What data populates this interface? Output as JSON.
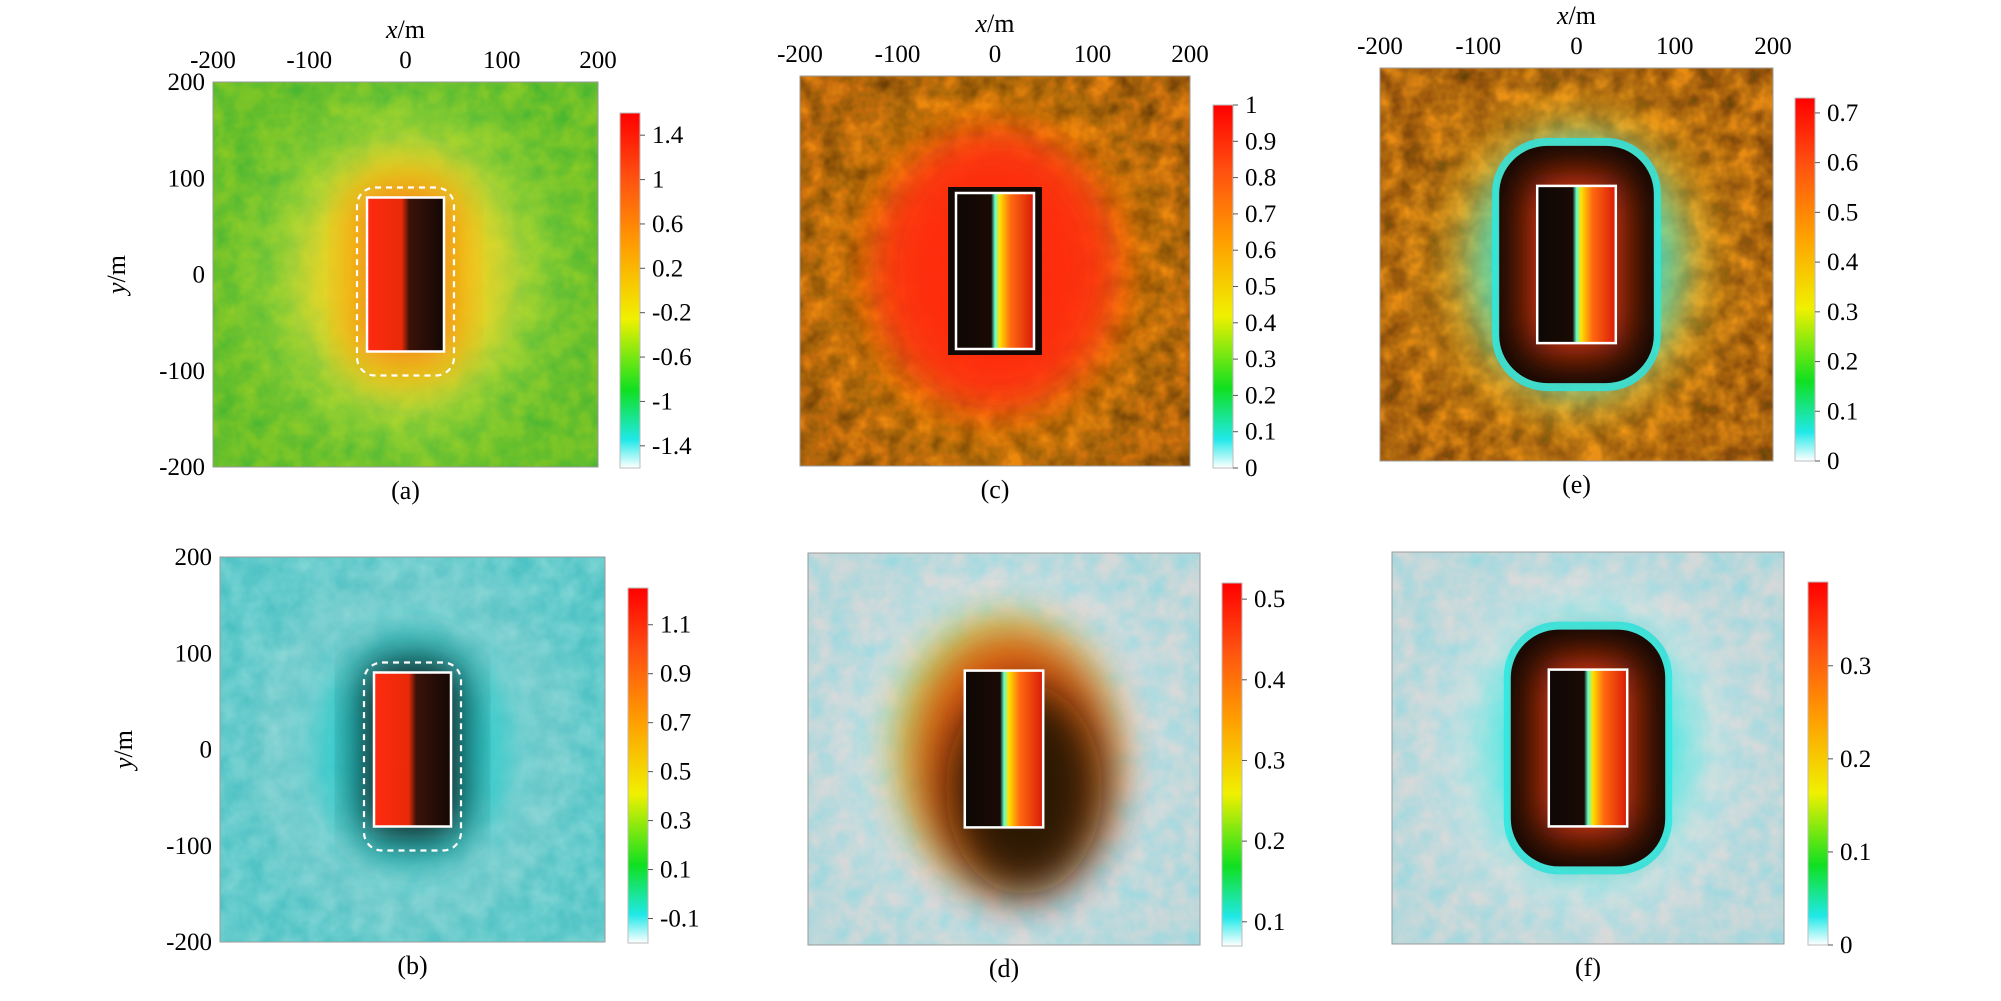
{
  "figure": {
    "axis_unit_x": "x/m",
    "axis_unit_y": "y/m",
    "x_ticks": [
      "-200",
      "-100",
      "0",
      "100",
      "200"
    ],
    "y_ticks": [
      "200",
      "100",
      "0",
      "-100",
      "-200"
    ]
  },
  "chart_data": [
    {
      "type": "heatmap",
      "label": "(a)",
      "xlabel": "x/m",
      "ylabel": "y/m",
      "xlim": [
        -200,
        200
      ],
      "ylim": [
        -200,
        200
      ],
      "show_top_axis": true,
      "show_left_axis": true,
      "background": "green",
      "halo_color": "#ffd21a",
      "colorbar": {
        "ticks": [
          "1.4",
          "1",
          "0.6",
          "0.2",
          "-0.2",
          "-0.6",
          "-1",
          "-1.4"
        ],
        "range": [
          -1.6,
          1.6
        ]
      },
      "body_rectangle": {
        "x": [
          -40,
          40
        ],
        "y": [
          -80,
          80
        ]
      },
      "dashed_outline": true
    },
    {
      "type": "heatmap",
      "label": "(b)",
      "xlabel": "",
      "ylabel": "y/m",
      "xlim": [
        -200,
        200
      ],
      "ylim": [
        -200,
        200
      ],
      "show_top_axis": false,
      "show_left_axis": true,
      "background": "cyan-gray",
      "halo_color": "#19c8c8",
      "colorbar": {
        "ticks": [
          "1.1",
          "0.9",
          "0.7",
          "0.5",
          "0.3",
          "0.1",
          "-0.1"
        ],
        "range": [
          -0.2,
          1.25
        ]
      },
      "body_rectangle": {
        "x": [
          -40,
          40
        ],
        "y": [
          -80,
          80
        ]
      },
      "dashed_outline": true
    },
    {
      "type": "heatmap",
      "label": "(c)",
      "xlabel": "x/m",
      "ylabel": "",
      "xlim": [
        -200,
        200
      ],
      "ylim": [
        -200,
        200
      ],
      "show_top_axis": true,
      "show_left_axis": false,
      "background": "orange",
      "halo_color": "#ff2a10",
      "colorbar": {
        "ticks": [
          "1",
          "0.9",
          "0.8",
          "0.7",
          "0.6",
          "0.5",
          "0.4",
          "0.3",
          "0.2",
          "0.1",
          "0"
        ],
        "range": [
          0,
          1
        ]
      },
      "body_rectangle": {
        "x": [
          -40,
          40
        ],
        "y": [
          -80,
          80
        ]
      },
      "dashed_outline": false
    },
    {
      "type": "heatmap",
      "label": "(d)",
      "xlabel": "",
      "ylabel": "",
      "xlim": [
        -200,
        200
      ],
      "ylim": [
        -200,
        200
      ],
      "show_top_axis": false,
      "show_left_axis": false,
      "background": "gray-cyan",
      "halo_color": "#8fd400",
      "colorbar": {
        "ticks": [
          "0.5",
          "0.4",
          "0.3",
          "0.2",
          "0.1"
        ],
        "range": [
          0.07,
          0.52
        ]
      },
      "body_rectangle": {
        "x": [
          -40,
          40
        ],
        "y": [
          -80,
          80
        ]
      },
      "dashed_outline": false
    },
    {
      "type": "heatmap",
      "label": "(e)",
      "xlabel": "x/m",
      "ylabel": "",
      "xlim": [
        -200,
        200
      ],
      "ylim": [
        -200,
        200
      ],
      "show_top_axis": true,
      "show_left_axis": false,
      "background": "orange-dark",
      "halo_color": "#2fe8e0",
      "colorbar": {
        "ticks": [
          "0.7",
          "0.6",
          "0.5",
          "0.4",
          "0.3",
          "0.2",
          "0.1",
          "0"
        ],
        "range": [
          0,
          0.73
        ]
      },
      "body_rectangle": {
        "x": [
          -40,
          40
        ],
        "y": [
          -80,
          80
        ]
      },
      "dashed_outline": false
    },
    {
      "type": "heatmap",
      "label": "(f)",
      "xlabel": "",
      "ylabel": "",
      "xlim": [
        -200,
        200
      ],
      "ylim": [
        -200,
        200
      ],
      "show_top_axis": false,
      "show_left_axis": false,
      "background": "gray-cyan",
      "halo_color": "#2fe8e0",
      "colorbar": {
        "ticks": [
          "0.3",
          "0.2",
          "0.1",
          "0"
        ],
        "range": [
          0,
          0.39
        ]
      },
      "body_rectangle": {
        "x": [
          -40,
          40
        ],
        "y": [
          -80,
          80
        ]
      },
      "dashed_outline": false
    }
  ]
}
